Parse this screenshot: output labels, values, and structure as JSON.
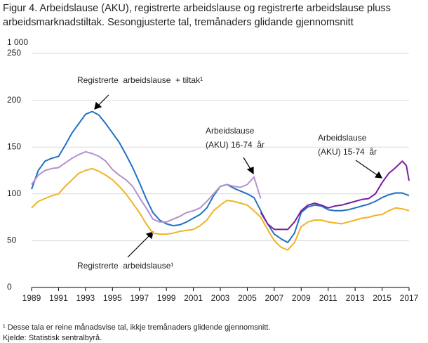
{
  "chart_data": {
    "type": "line",
    "title": "Figur 4. Arbeidslause (AKU), registrerte arbeidslause og registrerte arbeidslause pluss arbeidsmarknadstiltak. Sesongjusterte tal, tremånaders glidande gjennomsnitt",
    "y_unit": "1 000",
    "xlim": [
      1989,
      2017
    ],
    "xticks": [
      1989,
      1991,
      1993,
      1995,
      1997,
      1999,
      2001,
      2003,
      2005,
      2007,
      2009,
      2011,
      2013,
      2015,
      2017
    ],
    "ylim": [
      0,
      250
    ],
    "yticks": [
      0,
      50,
      100,
      150,
      200,
      250
    ],
    "grid": true,
    "series": [
      {
        "name": "Registrerte arbeidslause + tiltak",
        "color": "#1f72c4",
        "x": [
          1989,
          1989.5,
          1990,
          1990.5,
          1991,
          1991.5,
          1992,
          1992.5,
          1993,
          1993.5,
          1994,
          1994.5,
          1995,
          1995.5,
          1996,
          1996.5,
          1997,
          1997.5,
          1998,
          1998.5,
          1999,
          1999.5,
          2000,
          2000.5,
          2001,
          2001.5,
          2002,
          2002.5,
          2003,
          2003.5,
          2004,
          2004.5,
          2005,
          2005.5,
          2006,
          2006.5,
          2007,
          2007.5,
          2008,
          2008.5,
          2009,
          2009.5,
          2010,
          2010.5,
          2011,
          2011.5,
          2012,
          2012.5,
          2013,
          2013.5,
          2014,
          2014.5,
          2015,
          2015.5,
          2016,
          2016.5,
          2017
        ],
        "values": [
          105,
          125,
          135,
          138,
          140,
          152,
          165,
          175,
          185,
          188,
          184,
          175,
          165,
          155,
          142,
          128,
          112,
          95,
          80,
          72,
          68,
          66,
          67,
          70,
          74,
          78,
          85,
          98,
          108,
          110,
          106,
          103,
          100,
          96,
          82,
          68,
          57,
          52,
          48,
          58,
          80,
          86,
          88,
          87,
          83,
          82,
          82,
          83,
          85,
          87,
          89,
          92,
          96,
          99,
          101,
          101,
          98
        ]
      },
      {
        "name": "Arbeidslause (AKU) 16-74 år",
        "color": "#b590cf",
        "x": [
          1989,
          1989.5,
          1990,
          1990.5,
          1991,
          1991.5,
          1992,
          1992.5,
          1993,
          1993.5,
          1994,
          1994.5,
          1995,
          1995.5,
          1996,
          1996.5,
          1997,
          1997.5,
          1998,
          1998.5,
          1999,
          1999.5,
          2000,
          2000.5,
          2001,
          2001.5,
          2002,
          2002.5,
          2003,
          2003.5,
          2004,
          2004.5,
          2005,
          2005.5,
          2006
        ],
        "values": [
          110,
          120,
          125,
          127,
          128,
          133,
          138,
          142,
          145,
          143,
          140,
          135,
          126,
          120,
          115,
          108,
          96,
          85,
          73,
          70,
          70,
          73,
          76,
          80,
          82,
          85,
          92,
          100,
          108,
          110,
          108,
          107,
          110,
          118,
          95
        ]
      },
      {
        "name": "Arbeidslause (AKU) 15-74 år",
        "color": "#7a1fa0",
        "x": [
          2006,
          2006.5,
          2007,
          2007.5,
          2008,
          2008.5,
          2009,
          2009.5,
          2010,
          2010.5,
          2011,
          2011.5,
          2012,
          2012.5,
          2013,
          2013.5,
          2014,
          2014.5,
          2015,
          2015.5,
          2016,
          2016.5,
          2016.8,
          2017
        ],
        "values": [
          80,
          68,
          62,
          62,
          62,
          70,
          82,
          88,
          90,
          88,
          85,
          87,
          88,
          90,
          92,
          94,
          95,
          100,
          112,
          122,
          128,
          135,
          130,
          114
        ]
      },
      {
        "name": "Registrerte arbeidslause",
        "color": "#f0b323",
        "x": [
          1989,
          1989.5,
          1990,
          1990.5,
          1991,
          1991.5,
          1992,
          1992.5,
          1993,
          1993.5,
          1994,
          1994.5,
          1995,
          1995.5,
          1996,
          1996.5,
          1997,
          1997.5,
          1998,
          1998.5,
          1999,
          1999.5,
          2000,
          2000.5,
          2001,
          2001.5,
          2002,
          2002.5,
          2003,
          2003.5,
          2004,
          2004.5,
          2005,
          2005.5,
          2006,
          2006.5,
          2007,
          2007.5,
          2008,
          2008.5,
          2009,
          2009.5,
          2010,
          2010.5,
          2011,
          2011.5,
          2012,
          2012.5,
          2013,
          2013.5,
          2014,
          2014.5,
          2015,
          2015.5,
          2016,
          2016.5,
          2017
        ],
        "values": [
          85,
          92,
          95,
          98,
          100,
          108,
          115,
          122,
          125,
          127,
          124,
          120,
          115,
          108,
          100,
          90,
          80,
          68,
          58,
          57,
          57,
          58,
          60,
          61,
          62,
          66,
          72,
          82,
          88,
          93,
          92,
          90,
          88,
          82,
          75,
          62,
          50,
          43,
          40,
          48,
          65,
          70,
          72,
          72,
          70,
          69,
          68,
          70,
          72,
          74,
          75,
          77,
          78,
          82,
          85,
          84,
          82
        ]
      }
    ],
    "annotations": [
      {
        "lines": [
          "Registrerte  arbeidslause  + tiltak¹"
        ]
      },
      {
        "lines": [
          "Arbeidslause",
          "(AKU) 16-74  år"
        ]
      },
      {
        "lines": [
          "Arbeidslause",
          "(AKU) 15-74  år"
        ]
      },
      {
        "lines": [
          "Registrerte  arbeidslause¹"
        ]
      }
    ],
    "footnote": "¹ Desse tala er reine månadsvise tal, ikkje tremånaders glidende gjennomsnitt.",
    "source": "Kjelde: Statistisk sentralbyrå."
  }
}
